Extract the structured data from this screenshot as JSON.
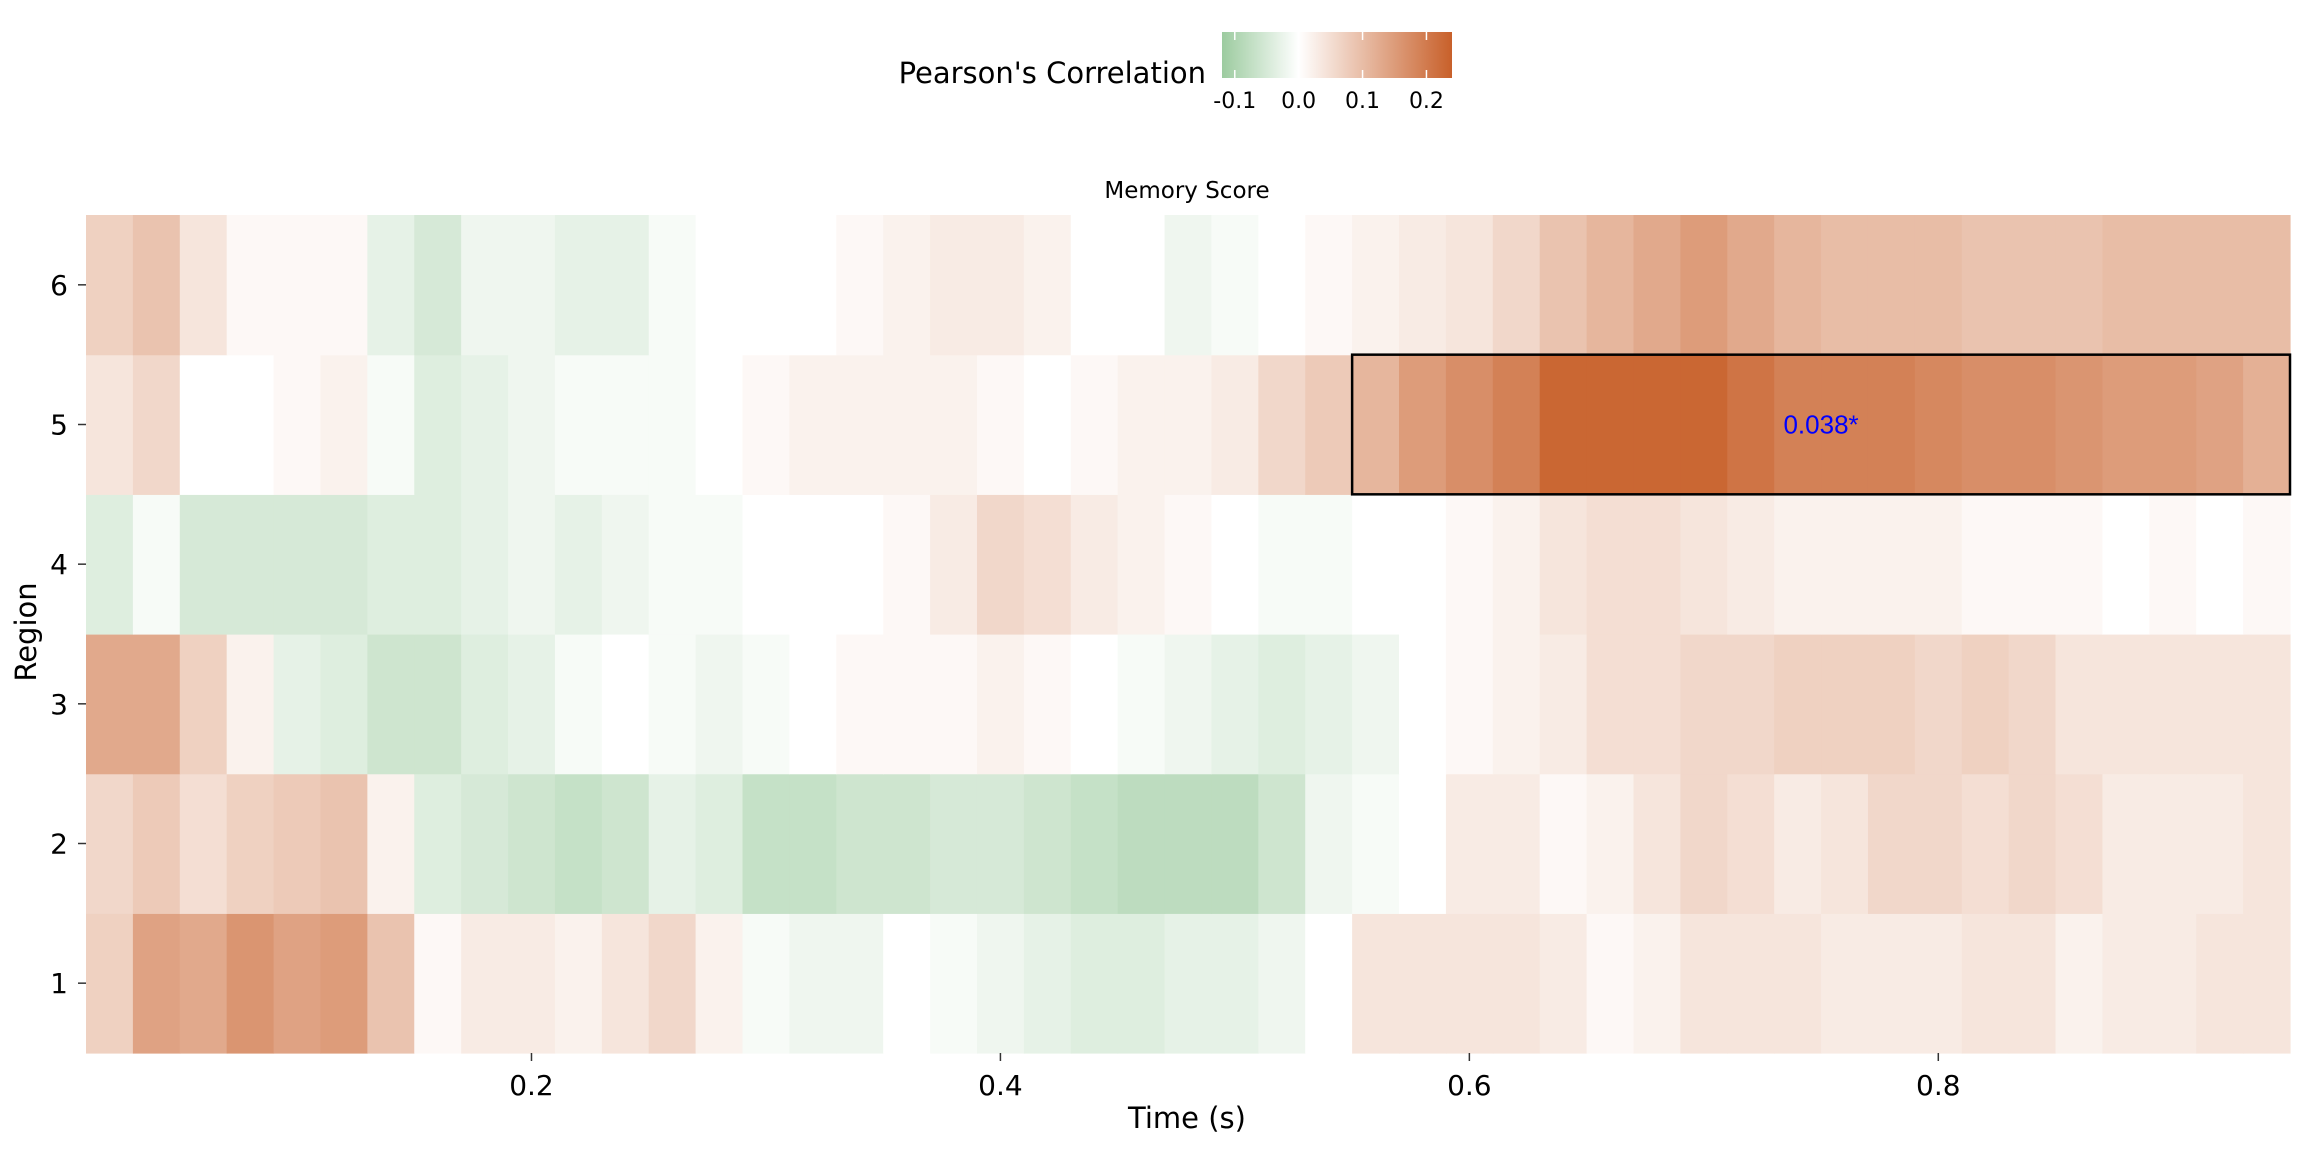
{
  "chart_data": {
    "type": "heatmap",
    "facet_title": "Memory Score",
    "xlabel": "Time (s)",
    "ylabel": "Region",
    "x_ticks": [
      "0.2",
      "0.4",
      "0.6",
      "0.8"
    ],
    "y_ticks": [
      "1",
      "2",
      "3",
      "4",
      "5",
      "6"
    ],
    "x_start": 0.02,
    "x_step": 0.02,
    "xlim": [
      0.01,
      0.95
    ],
    "legend": {
      "title": "Pearson's Correlation",
      "position": "top",
      "min": -0.12,
      "max": 0.24,
      "labels": [
        "-0.1",
        "0.0",
        "0.1",
        "0.2"
      ],
      "colors": {
        "low": "#9ccb9f",
        "mid": "#ffffff",
        "high": "#c8602a"
      }
    },
    "regions": [
      {
        "region": "1",
        "values": [
          0.07,
          0.14,
          0.13,
          0.16,
          0.14,
          0.15,
          0.09,
          0.01,
          0.03,
          0.03,
          0.02,
          0.04,
          0.06,
          0.02,
          -0.01,
          -0.02,
          -0.02,
          0.0,
          -0.01,
          -0.02,
          -0.03,
          -0.04,
          -0.04,
          -0.03,
          -0.03,
          -0.02,
          0.0,
          0.04,
          0.04,
          0.04,
          0.04,
          0.03,
          0.01,
          0.02,
          0.04,
          0.04,
          0.04,
          0.03,
          0.03,
          0.03,
          0.04,
          0.04,
          0.02,
          0.03,
          0.03,
          0.04,
          0.04
        ]
      },
      {
        "region": "2",
        "values": [
          0.06,
          0.08,
          0.05,
          0.07,
          0.08,
          0.09,
          0.02,
          -0.04,
          -0.05,
          -0.06,
          -0.07,
          -0.06,
          -0.03,
          -0.04,
          -0.07,
          -0.07,
          -0.06,
          -0.06,
          -0.05,
          -0.05,
          -0.06,
          -0.07,
          -0.08,
          -0.08,
          -0.08,
          -0.06,
          -0.02,
          -0.01,
          0.0,
          0.03,
          0.03,
          0.01,
          0.02,
          0.04,
          0.06,
          0.05,
          0.03,
          0.04,
          0.06,
          0.06,
          0.05,
          0.06,
          0.05,
          0.03,
          0.03,
          0.03,
          0.04
        ]
      },
      {
        "region": "3",
        "values": [
          0.13,
          0.13,
          0.07,
          0.02,
          -0.03,
          -0.04,
          -0.06,
          -0.06,
          -0.04,
          -0.03,
          -0.01,
          0.0,
          -0.01,
          -0.02,
          -0.01,
          0.0,
          0.01,
          0.01,
          0.01,
          0.02,
          0.01,
          0.0,
          -0.01,
          -0.02,
          -0.03,
          -0.04,
          -0.03,
          -0.02,
          0.0,
          0.01,
          0.02,
          0.03,
          0.05,
          0.05,
          0.06,
          0.06,
          0.07,
          0.07,
          0.07,
          0.06,
          0.07,
          0.06,
          0.04,
          0.04,
          0.04,
          0.04,
          0.04
        ]
      },
      {
        "region": "4",
        "values": [
          -0.04,
          -0.01,
          -0.05,
          -0.05,
          -0.05,
          -0.05,
          -0.04,
          -0.04,
          -0.03,
          -0.02,
          -0.03,
          -0.02,
          -0.01,
          -0.01,
          0.0,
          0.0,
          0.0,
          0.01,
          0.03,
          0.06,
          0.05,
          0.03,
          0.02,
          0.01,
          0.0,
          -0.01,
          -0.01,
          0.0,
          0.0,
          0.01,
          0.02,
          0.04,
          0.05,
          0.05,
          0.04,
          0.03,
          0.02,
          0.02,
          0.02,
          0.02,
          0.01,
          0.01,
          0.01,
          0.0,
          0.01,
          0.0,
          0.01
        ]
      },
      {
        "region": "5",
        "values": [
          0.04,
          0.06,
          0.0,
          0.0,
          0.01,
          0.02,
          -0.01,
          -0.04,
          -0.03,
          -0.02,
          -0.01,
          -0.01,
          -0.01,
          0.0,
          0.01,
          0.02,
          0.02,
          0.02,
          0.02,
          0.01,
          0.0,
          0.01,
          0.02,
          0.02,
          0.03,
          0.06,
          0.08,
          0.11,
          0.15,
          0.17,
          0.19,
          0.23,
          0.23,
          0.23,
          0.23,
          0.21,
          0.19,
          0.19,
          0.19,
          0.18,
          0.17,
          0.17,
          0.16,
          0.15,
          0.15,
          0.14,
          0.12
        ]
      },
      {
        "region": "6",
        "values": [
          0.07,
          0.09,
          0.04,
          0.01,
          0.01,
          0.01,
          -0.03,
          -0.05,
          -0.02,
          -0.02,
          -0.03,
          -0.03,
          -0.01,
          0.0,
          0.0,
          0.0,
          0.01,
          0.02,
          0.03,
          0.03,
          0.02,
          0.0,
          0.0,
          -0.02,
          -0.01,
          0.0,
          0.01,
          0.02,
          0.03,
          0.04,
          0.06,
          0.09,
          0.11,
          0.13,
          0.15,
          0.13,
          0.11,
          0.1,
          0.1,
          0.1,
          0.09,
          0.09,
          0.09,
          0.1,
          0.1,
          0.1,
          0.1
        ]
      }
    ],
    "annotations": [
      {
        "region": "5",
        "x_from": 0.55,
        "x_to": 0.95,
        "label": "0.038*",
        "color": "#0000ff"
      }
    ]
  }
}
